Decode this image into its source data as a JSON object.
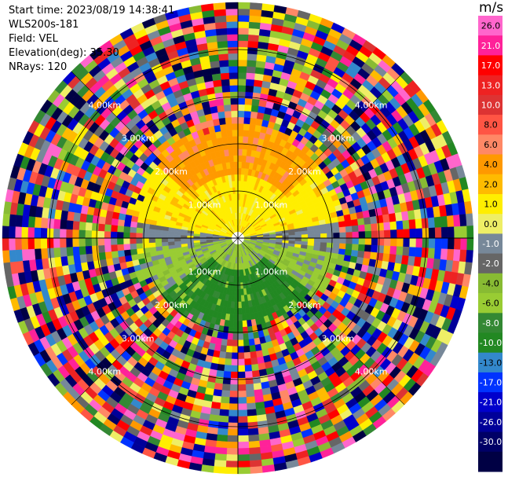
{
  "info": {
    "start_time": "Start time: 2023/08/19 14:38:41",
    "instrument": "WLS200s-181",
    "field": "Field: VEL",
    "elevation": "Elevation(deg): 35.30",
    "nrays": "NRays: 120"
  },
  "colorbar": {
    "unit": "m/s",
    "ticks": [
      "26.0",
      "21.0",
      "17.0",
      "13.0",
      "10.0",
      "8.0",
      "6.0",
      "4.0",
      "2.0",
      "1.0",
      "0.0",
      "-1.0",
      "-2.0",
      "-4.0",
      "-6.0",
      "-8.0",
      "-10.0",
      "-13.0",
      "-17.0",
      "-21.0",
      "-26.0",
      "-30.0"
    ],
    "colors": [
      "#ff66cc",
      "#ff2299",
      "#ff0000",
      "#ee2222",
      "#dd3333",
      "#ff5544",
      "#ff8866",
      "#ff9900",
      "#ffbb00",
      "#ffee00",
      "#eeee66",
      "#778899",
      "#666666",
      "#88bb33",
      "#99cc33",
      "#338833",
      "#228822",
      "#3388cc",
      "#0033ff",
      "#0000cc",
      "#000099",
      "#000066",
      "#000044"
    ]
  },
  "range_labels": [
    "1.00km",
    "2.00km",
    "3.00km",
    "4.00km"
  ],
  "chart_data": {
    "type": "heatmap",
    "title": "",
    "field": "VEL",
    "units": "m/s",
    "nrays": 120,
    "elevation_deg": 35.3,
    "range_rings_km": [
      1,
      2,
      3,
      4
    ],
    "max_range_km": 5,
    "colorbar_levels": [
      -30,
      -26,
      -21,
      -17,
      -13,
      -10,
      -8,
      -6,
      -4,
      -2,
      -1,
      0,
      1,
      2,
      4,
      6,
      8,
      10,
      13,
      17,
      21,
      26
    ],
    "pattern": {
      "north_half_sign": "positive",
      "south_half_sign": "negative",
      "noise_beyond_km": 2.2
    }
  }
}
